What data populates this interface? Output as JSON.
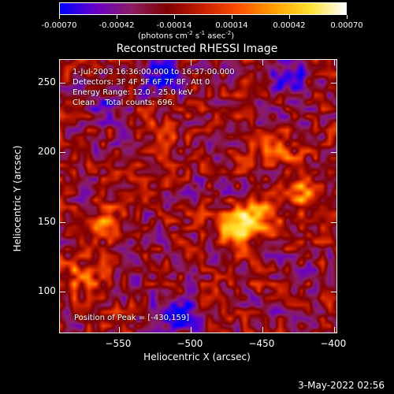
{
  "colorbar": {
    "colors": [
      "#0000ff",
      "#6a00c8",
      "#8c1e64",
      "#800000",
      "#c81e00",
      "#ff5000",
      "#ffa000",
      "#ffe030",
      "#ffffff"
    ],
    "range": [
      -0.0007,
      0.0007
    ],
    "tick_values": [
      -0.0007,
      -0.00042,
      -0.00014,
      0.00014,
      0.00042,
      0.0007
    ],
    "tick_labels": [
      "-0.00070",
      "-0.00042",
      "-0.00014",
      "0.00014",
      "0.00042",
      "0.00070"
    ],
    "units_prefix": "(photons cm",
    "units_exp1": "-2",
    "units_mid": " s",
    "units_exp2": "-1",
    "units_mid2": " asec",
    "units_exp3": "-2",
    "units_suffix": ")"
  },
  "chart_data": {
    "type": "heatmap",
    "title": "Reconstructed RHESSI Image",
    "xlabel": "Heliocentric X (arcsec)",
    "ylabel": "Heliocentric Y (arcsec)",
    "xlim": [
      -592,
      -398
    ],
    "ylim": [
      70,
      267
    ],
    "x_ticks": [
      -550,
      -500,
      -450,
      -400
    ],
    "x_tick_labels": [
      "−550",
      "−500",
      "−450",
      "−400"
    ],
    "y_ticks": [
      100,
      150,
      200,
      250
    ],
    "y_tick_labels": [
      "100",
      "150",
      "200",
      "250"
    ],
    "peak": [
      -430,
      159
    ],
    "source_blobs": [
      {
        "x": -455,
        "y": 153,
        "amp": 0.0007
      },
      {
        "x": -420,
        "y": 170,
        "amp": 0.00055
      },
      {
        "x": -470,
        "y": 145,
        "amp": 0.0005
      },
      {
        "x": -440,
        "y": 200,
        "amp": 0.0003
      },
      {
        "x": -580,
        "y": 110,
        "amp": 0.0004
      },
      {
        "x": -560,
        "y": 150,
        "amp": 0.00035
      },
      {
        "x": -520,
        "y": 215,
        "amp": 0.00025
      },
      {
        "x": -520,
        "y": 255,
        "amp": -0.0006
      },
      {
        "x": -435,
        "y": 255,
        "amp": -0.0004
      },
      {
        "x": -510,
        "y": 85,
        "amp": -0.0005
      },
      {
        "x": -560,
        "y": 235,
        "amp": -0.0003
      }
    ]
  },
  "info": {
    "line1": "1-Jul-2003 16:36:00.000 to 16:37:00.000",
    "line2": "Detectors: 3F 4F 5F 6F 7F 8F, Att 0",
    "line3": "Energy Range: 12.0 - 25.0 keV",
    "line4": "Clean    Total counts: 696.",
    "peak_text": "Position of Peak = [-430,159]"
  },
  "timestamp": "3-May-2022 02:56"
}
